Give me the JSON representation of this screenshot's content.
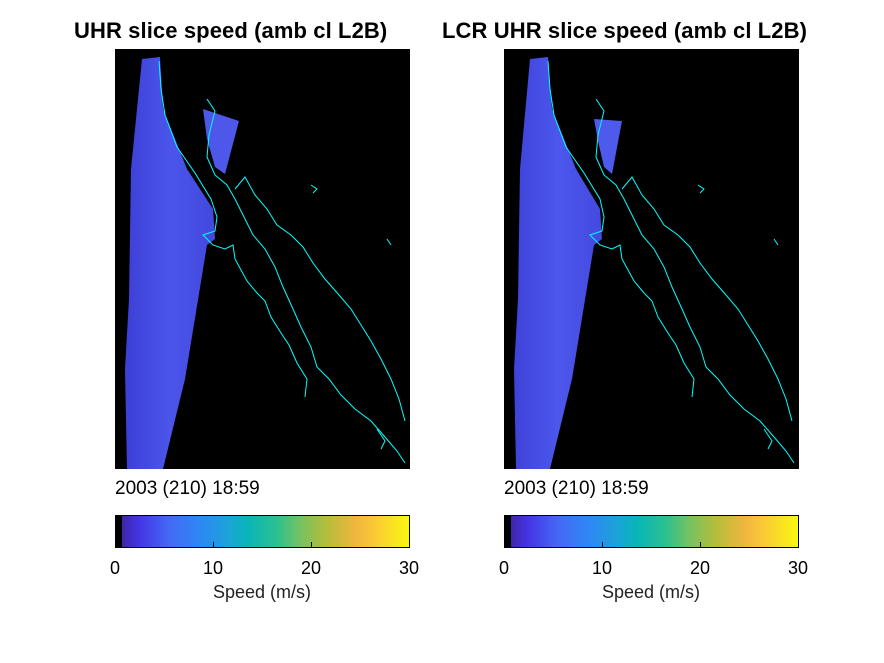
{
  "figure": {
    "panels": [
      {
        "title": "UHR slice speed (amb cl L2B)",
        "date": "2003 (210) 18:59"
      },
      {
        "title": "LCR UHR slice speed (amb cl L2B)",
        "date": "2003 (210) 18:59"
      }
    ],
    "colorbar": {
      "label": "Speed (m/s)",
      "ticks": [
        "0",
        "10",
        "20",
        "30"
      ],
      "colormap": "parula",
      "colors": {
        "background": "#000000",
        "coastline": "#00ffff",
        "swath": "#4a50e8"
      }
    }
  },
  "chart_data": [
    {
      "type": "heatmap",
      "title": "UHR slice speed (amb cl L2B)",
      "xlabel": "",
      "ylabel": "",
      "colorbar_label": "Speed (m/s)",
      "clim": [
        0,
        30
      ],
      "colorbar_ticks": [
        0,
        10,
        20,
        30
      ],
      "annotation": "2003 (210) 18:59",
      "typical_speed_over_swath": 5
    },
    {
      "type": "heatmap",
      "title": "LCR UHR slice speed (amb cl L2B)",
      "xlabel": "",
      "ylabel": "",
      "colorbar_label": "Speed (m/s)",
      "clim": [
        0,
        30
      ],
      "colorbar_ticks": [
        0,
        10,
        20,
        30
      ],
      "annotation": "2003 (210) 18:59",
      "typical_speed_over_swath": 5
    }
  ]
}
